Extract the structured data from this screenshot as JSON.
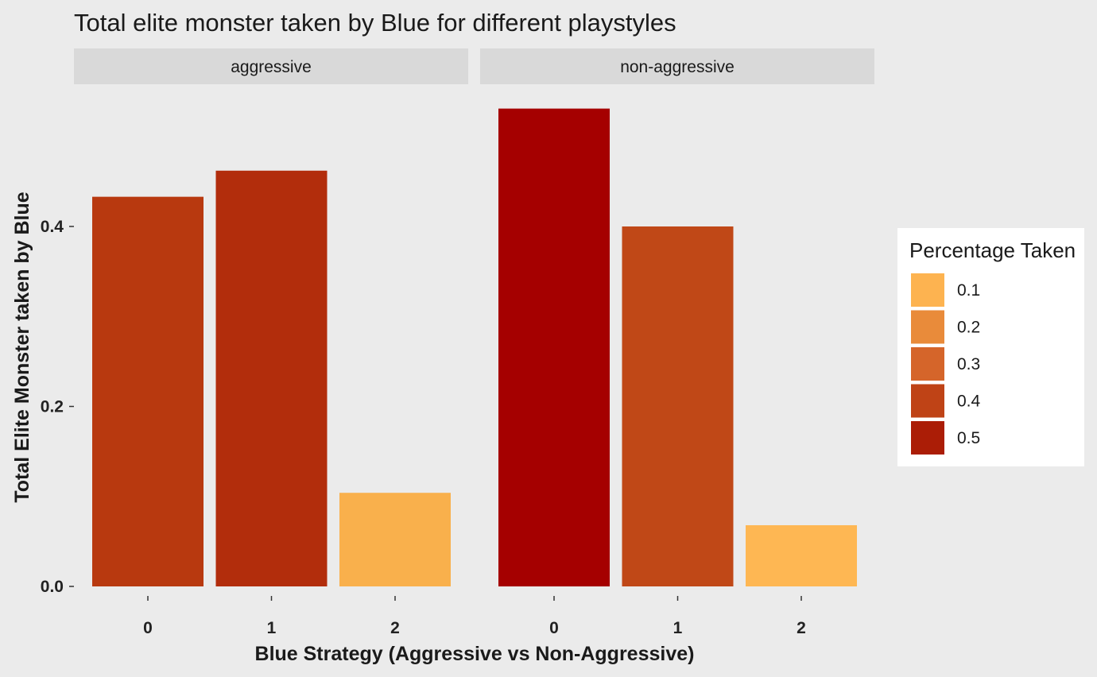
{
  "chart_data": {
    "type": "bar",
    "title": "Total elite monster taken by Blue for different playstyles",
    "xlabel": "Blue Strategy (Aggressive vs Non-Aggressive)",
    "ylabel": "Total Elite Monster taken by Blue",
    "ylim": [
      0,
      0.55
    ],
    "y_ticks": [
      "0.0",
      "0.2",
      "0.4"
    ],
    "y_tick_values": [
      0,
      0.2,
      0.4
    ],
    "grid": false,
    "legend_position": "right",
    "legend": {
      "title": "Percentage Taken",
      "entries": [
        {
          "label": "0.1",
          "color": "#fdb350"
        },
        {
          "label": "0.2",
          "color": "#e98b3a"
        },
        {
          "label": "0.3",
          "color": "#d5652a"
        },
        {
          "label": "0.4",
          "color": "#bf4316"
        },
        {
          "label": "0.5",
          "color": "#ab1d06"
        }
      ]
    },
    "panels": [
      {
        "name": "aggressive",
        "categories": [
          "0",
          "1",
          "2"
        ],
        "values": [
          0.433,
          0.462,
          0.104
        ],
        "colors": [
          "#b8390f",
          "#b22d0c",
          "#f9b04c"
        ]
      },
      {
        "name": "non-aggressive",
        "categories": [
          "0",
          "1",
          "2"
        ],
        "values": [
          0.531,
          0.4,
          0.068
        ],
        "colors": [
          "#a50000",
          "#c04817",
          "#feb753"
        ]
      }
    ]
  }
}
